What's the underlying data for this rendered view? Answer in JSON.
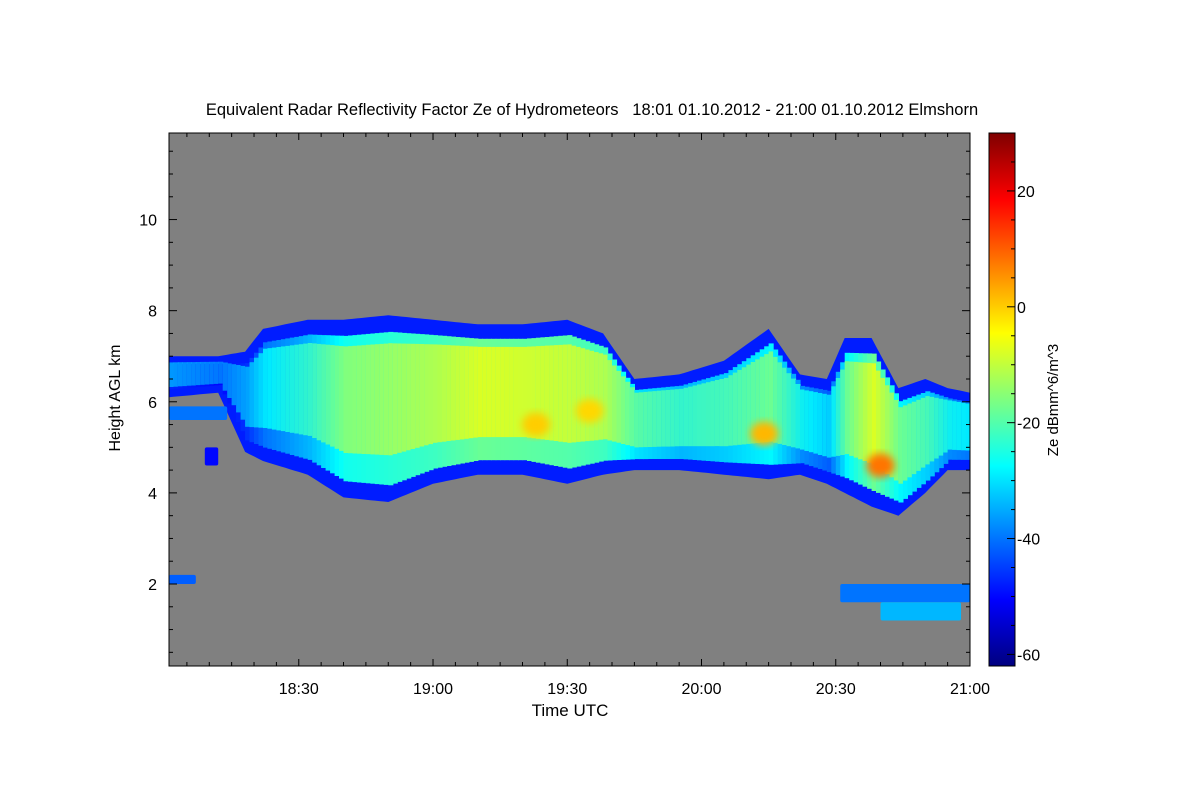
{
  "chart_data": {
    "type": "heatmap",
    "title": "Equivalent Radar Reflectivity Factor Ze of Hydrometeors   18:01 01.10.2012 - 21:00 01.10.2012 Elmshorn",
    "xlabel": "Time UTC",
    "ylabel": "Height AGL km",
    "colorbar_label": "Ze dBmm^6/m^3",
    "x_range_minutes_utc": [
      1081,
      1260
    ],
    "x_ticks": [
      {
        "value": 1110,
        "label": "18:30"
      },
      {
        "value": 1140,
        "label": "19:00"
      },
      {
        "value": 1170,
        "label": "19:30"
      },
      {
        "value": 1200,
        "label": "20:00"
      },
      {
        "value": 1230,
        "label": "20:30"
      },
      {
        "value": 1260,
        "label": "21:00"
      }
    ],
    "y_range_km": [
      0.2,
      11.9
    ],
    "y_ticks": [
      {
        "value": 2,
        "label": "2"
      },
      {
        "value": 4,
        "label": "4"
      },
      {
        "value": 6,
        "label": "6"
      },
      {
        "value": 8,
        "label": "8"
      },
      {
        "value": 10,
        "label": "10"
      }
    ],
    "colorbar_range": [
      -62,
      30
    ],
    "colorbar_ticks": [
      {
        "value": -60,
        "label": "-60"
      },
      {
        "value": -40,
        "label": "-40"
      },
      {
        "value": -20,
        "label": "-20"
      },
      {
        "value": 0,
        "label": "0"
      },
      {
        "value": 20,
        "label": "20"
      }
    ],
    "background_color": "#808080",
    "colormap": [
      "#00007f",
      "#0000ff",
      "#007fff",
      "#00ffff",
      "#7fff7f",
      "#ffff00",
      "#ff7f00",
      "#ff0000",
      "#7f0000"
    ],
    "profile": [
      {
        "t": 1081,
        "base": 6.1,
        "top": 7.0,
        "ze": -35
      },
      {
        "t": 1092,
        "base": 6.2,
        "top": 7.0,
        "ze": -38
      },
      {
        "t": 1098,
        "base": 4.9,
        "top": 7.1,
        "ze": -34
      },
      {
        "t": 1102,
        "base": 4.7,
        "top": 7.6,
        "ze": -28
      },
      {
        "t": 1112,
        "base": 4.4,
        "top": 7.8,
        "ze": -22
      },
      {
        "t": 1120,
        "base": 3.9,
        "top": 7.8,
        "ze": -14
      },
      {
        "t": 1130,
        "base": 3.8,
        "top": 7.9,
        "ze": -12
      },
      {
        "t": 1140,
        "base": 4.2,
        "top": 7.8,
        "ze": -10
      },
      {
        "t": 1150,
        "base": 4.4,
        "top": 7.7,
        "ze": -6
      },
      {
        "t": 1160,
        "base": 4.4,
        "top": 7.7,
        "ze": -7
      },
      {
        "t": 1170,
        "base": 4.2,
        "top": 7.8,
        "ze": -8
      },
      {
        "t": 1178,
        "base": 4.4,
        "top": 7.5,
        "ze": -10
      },
      {
        "t": 1185,
        "base": 4.5,
        "top": 6.5,
        "ze": -18
      },
      {
        "t": 1195,
        "base": 4.5,
        "top": 6.6,
        "ze": -22
      },
      {
        "t": 1205,
        "base": 4.4,
        "top": 6.9,
        "ze": -20
      },
      {
        "t": 1215,
        "base": 4.3,
        "top": 7.6,
        "ze": -16
      },
      {
        "t": 1222,
        "base": 4.4,
        "top": 6.6,
        "ze": -26
      },
      {
        "t": 1228,
        "base": 4.2,
        "top": 6.5,
        "ze": -30
      },
      {
        "t": 1232,
        "base": 4.0,
        "top": 7.4,
        "ze": -16
      },
      {
        "t": 1238,
        "base": 3.7,
        "top": 7.4,
        "ze": -6
      },
      {
        "t": 1244,
        "base": 3.5,
        "top": 6.3,
        "ze": -16
      },
      {
        "t": 1250,
        "base": 4.0,
        "top": 6.5,
        "ze": -20
      },
      {
        "t": 1255,
        "base": 4.5,
        "top": 6.3,
        "ze": -26
      },
      {
        "t": 1260,
        "base": 4.5,
        "top": 6.2,
        "ze": -28
      }
    ],
    "patches": [
      {
        "t": [
          1089,
          1092
        ],
        "h": [
          4.6,
          5.0
        ],
        "ze": -50
      },
      {
        "t": [
          1081,
          1094
        ],
        "h": [
          5.6,
          5.9
        ],
        "ze": -40
      },
      {
        "t": [
          1081,
          1087
        ],
        "h": [
          2.0,
          2.2
        ],
        "ze": -42
      },
      {
        "t": [
          1231,
          1260
        ],
        "h": [
          1.6,
          2.0
        ],
        "ze": -40
      },
      {
        "t": [
          1240,
          1258
        ],
        "h": [
          1.2,
          1.6
        ],
        "ze": -34
      }
    ],
    "cores": [
      {
        "t": 1163,
        "h": 5.5,
        "ze": 0
      },
      {
        "t": 1175,
        "h": 5.8,
        "ze": -1
      },
      {
        "t": 1240,
        "h": 4.6,
        "ze": 8
      },
      {
        "t": 1214,
        "h": 5.3,
        "ze": 2
      }
    ]
  }
}
